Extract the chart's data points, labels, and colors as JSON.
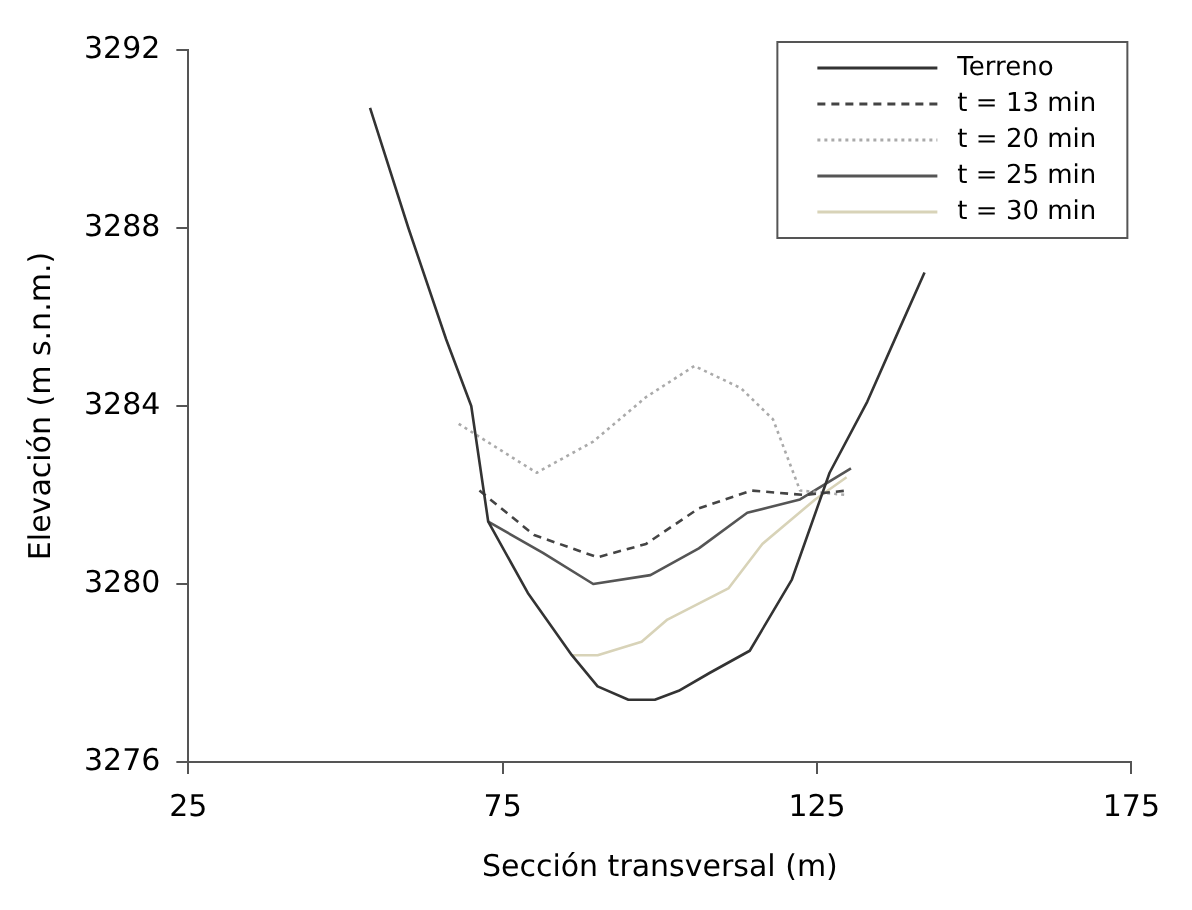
{
  "chart_data": {
    "type": "line",
    "xlabel": "Sección transversal (m)",
    "ylabel": "Elevación (m s.n.m.)",
    "xlim": [
      25,
      175
    ],
    "xticks": [
      25,
      75,
      125,
      175
    ],
    "ylim": [
      3276,
      3292
    ],
    "yticks": [
      3276,
      3280,
      3284,
      3288,
      3292
    ],
    "grid": false,
    "legend": "top right",
    "marker": "none",
    "series": [
      {
        "name": "Terreno",
        "color": "#333333",
        "line_style": "solid",
        "x": [
          53.9,
          60,
          66,
          70,
          72.7,
          79,
          86,
          90.1,
          95,
          99.2,
          103,
          107.9,
          114.3,
          121,
          127,
          133,
          138,
          142.1
        ],
        "values": [
          3290.7,
          3288,
          3285.5,
          3284,
          3281.4,
          3279.8,
          3278.4,
          3277.7,
          3277.4,
          3277.4,
          3277.6,
          3278,
          3278.5,
          3280.1,
          3282.5,
          3284.1,
          3285.7,
          3287
        ]
      },
      {
        "name": "t = 13 min",
        "color": "#444444",
        "line_style": "dashed",
        "x": [
          71.3,
          80,
          90.1,
          97.8,
          106.2,
          114.6,
          123,
          129.7
        ],
        "values": [
          3282.1,
          3281.1,
          3280.6,
          3280.9,
          3281.7,
          3282.1,
          3282,
          3282.1
        ]
      },
      {
        "name": "t = 20 min",
        "color": "#aaaaaa",
        "line_style": "dotted",
        "x": [
          68,
          80.4,
          89.4,
          97.8,
          105.5,
          112.9,
          118,
          122.3,
          129.7
        ],
        "values": [
          3283.6,
          3282.5,
          3283.2,
          3284.2,
          3284.9,
          3284.4,
          3283.7,
          3282.1,
          3282
        ]
      },
      {
        "name": "t = 25 min",
        "color": "#555555",
        "line_style": "solid",
        "x": [
          72.7,
          81.4,
          89.4,
          98.5,
          106.2,
          113.9,
          122.3,
          130.4
        ],
        "values": [
          3281.4,
          3280.7,
          3280,
          3280.2,
          3280.8,
          3281.6,
          3281.9,
          3282.6
        ]
      },
      {
        "name": "t = 30 min",
        "color": "#d8d3b8",
        "line_style": "solid",
        "x": [
          86,
          90.1,
          97.1,
          101.2,
          110.9,
          116.3,
          124.7,
          129.7
        ],
        "values": [
          3278.4,
          3278.4,
          3278.7,
          3279.2,
          3279.9,
          3280.9,
          3281.9,
          3282.4
        ]
      }
    ]
  }
}
